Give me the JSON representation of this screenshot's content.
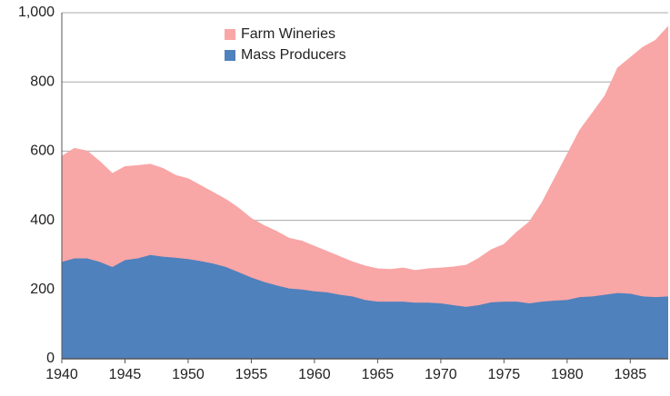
{
  "chart_data": {
    "type": "stacked_area",
    "x": [
      1940,
      1941,
      1942,
      1943,
      1944,
      1945,
      1946,
      1947,
      1948,
      1949,
      1950,
      1951,
      1952,
      1953,
      1954,
      1955,
      1956,
      1957,
      1958,
      1959,
      1960,
      1961,
      1962,
      1963,
      1964,
      1965,
      1966,
      1967,
      1968,
      1969,
      1970,
      1971,
      1972,
      1973,
      1974,
      1975,
      1976,
      1977,
      1978,
      1979,
      1980,
      1981,
      1982,
      1983,
      1984,
      1985,
      1986,
      1987,
      1988
    ],
    "series": [
      {
        "name": "Mass Producers",
        "color": "#4f81bd",
        "values": [
          280,
          290,
          290,
          280,
          265,
          285,
          290,
          300,
          295,
          292,
          288,
          282,
          275,
          265,
          250,
          235,
          222,
          212,
          203,
          200,
          195,
          192,
          185,
          180,
          170,
          165,
          165,
          165,
          162,
          162,
          160,
          155,
          150,
          155,
          163,
          165,
          165,
          160,
          165,
          168,
          170,
          178,
          180,
          185,
          190,
          188,
          180,
          178,
          180
        ]
      },
      {
        "name": "Farm Wineries",
        "color": "#f9a6a6",
        "values": [
          305,
          318,
          310,
          290,
          270,
          270,
          268,
          262,
          255,
          238,
          232,
          218,
          205,
          195,
          185,
          170,
          163,
          156,
          145,
          140,
          130,
          118,
          110,
          100,
          98,
          95,
          93,
          97,
          93,
          98,
          102,
          110,
          120,
          135,
          152,
          165,
          200,
          235,
          285,
          352,
          420,
          482,
          530,
          575,
          650,
          682,
          720,
          742,
          780
        ]
      }
    ],
    "xlim": [
      1940,
      1988
    ],
    "xticks": [
      1940,
      1945,
      1950,
      1955,
      1960,
      1965,
      1970,
      1975,
      1980,
      1985
    ],
    "ylim": [
      0,
      1000
    ],
    "yticks": [
      0,
      200,
      400,
      600,
      800,
      {
        "value": 1000,
        "label": "1,000"
      }
    ],
    "grid": true
  }
}
